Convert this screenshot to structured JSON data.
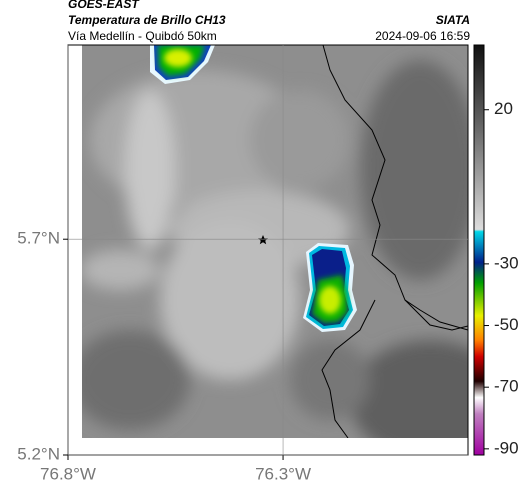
{
  "header": {
    "satellite": "GOES-EAST",
    "product": "Temperatura de Brillo CH13",
    "route": "Vía Medellín - Quibdó 50km",
    "source": "SIATA",
    "datetime": "2024-09-06 16:59"
  },
  "map": {
    "xlim": [
      -76.8,
      -75.87
    ],
    "ylim": [
      5.2,
      6.15
    ],
    "xticks": [
      {
        "value": -76.8,
        "label": "76.8°W"
      },
      {
        "value": -76.3,
        "label": "76.3°W"
      }
    ],
    "yticks": [
      {
        "value": 5.7,
        "label": "5.7°N"
      },
      {
        "value": 5.2,
        "label": "5.2°N"
      }
    ]
  },
  "colorbar": {
    "lim": [
      41,
      -92
    ],
    "ticks": [
      20,
      -30,
      -50,
      -70,
      -90
    ]
  }
}
